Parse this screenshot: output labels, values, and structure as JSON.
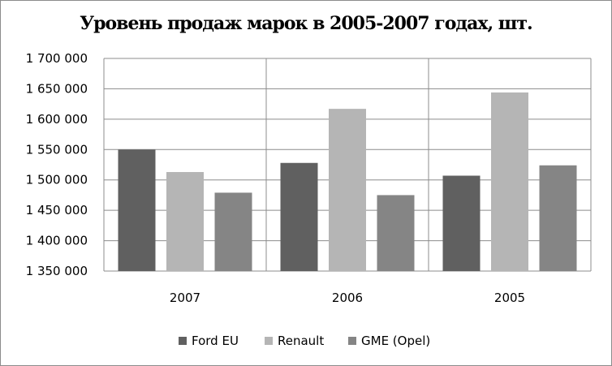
{
  "chart_data": {
    "type": "bar",
    "title": "Уровень продаж марок в 2005-2007 годах, шт.",
    "categories": [
      "2007",
      "2006",
      "2005"
    ],
    "series": [
      {
        "name": "Ford EU",
        "color": "#606060",
        "values": [
          1550000,
          1528000,
          1507000
        ]
      },
      {
        "name": "Renault",
        "color": "#b5b5b5",
        "values": [
          1513000,
          1617000,
          1644000
        ]
      },
      {
        "name": "GME (Opel)",
        "color": "#858585",
        "values": [
          1479000,
          1475000,
          1524000
        ]
      }
    ],
    "yticks": [
      "1 350 000",
      "1 400 000",
      "1 450 000",
      "1 500 000",
      "1 550 000",
      "1 600 000",
      "1 650 000",
      "1 700 000"
    ],
    "ylim": [
      1350000,
      1700000
    ],
    "ystep": 50000,
    "grid": "horizontal and vertical",
    "legend": "bottom"
  }
}
